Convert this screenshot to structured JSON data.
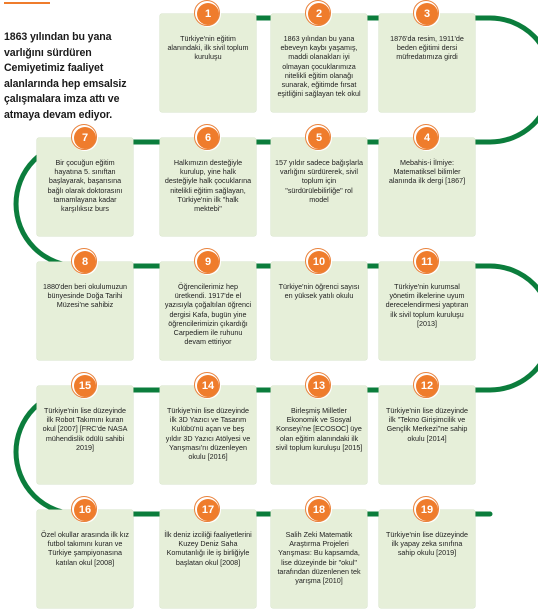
{
  "intro": "1863 yılından bu yana varlığını sürdüren Cemiyetimiz faaliyet alanlarında hep emsalsiz çalışmalara imza attı ve atmaya devam ediyor.",
  "colors": {
    "accent": "#ef7c2c",
    "path": "#0b7d3c",
    "card": "#e6efd9"
  },
  "milestones": [
    {
      "n": "1",
      "text": "Türkiye'nin eğitim alanındaki, ilk sivil toplum kuruluşu"
    },
    {
      "n": "2",
      "text": "1863 yılından bu yana ebeveyn kaybı yaşamış, maddi olanakları iyi olmayan çocuklarımıza nitelikli eğitim olanağı sunarak, eğitimde fırsat eşitliğini sağlayan tek okul"
    },
    {
      "n": "3",
      "text": "1876'da resim, 1911'de beden eğitimi dersi müfredatımıza girdi"
    },
    {
      "n": "4",
      "text": "Mebahis-i İlmiye: Matematiksel bilimler alanında ilk dergi [1867]"
    },
    {
      "n": "5",
      "text": "157 yıldır sadece bağışlarla varlığını sürdürerek, sivil toplum için \"sürdürülebilirliğe\" rol model"
    },
    {
      "n": "6",
      "text": "Halkımızın desteğiyle kurulup, yine halk desteğiyle halk çocuklarına nitelikli eğitim sağlayan, Türkiye'nin ilk \"halk mektebi\""
    },
    {
      "n": "7",
      "text": "Bir çocuğun eğitim hayatına 5. sınıftan başlayarak, başarısına bağlı olarak doktorasını tamamlayana kadar karşılıksız burs"
    },
    {
      "n": "8",
      "text": "1880'den beri okulumuzun bünyesinde Doğa Tarihi Müzesi'ne sahibiz"
    },
    {
      "n": "9",
      "text": "Öğrencilerimiz hep üretkendi. 1917'de el yazısıyla çoğaltılan öğrenci dergisi Kafa, bugün yine öğrencilerimizin çıkardığı Carpediem ile ruhunu devam ettiriyor"
    },
    {
      "n": "10",
      "text": "Türkiye'nin öğrenci sayısı en yüksek yatılı okulu"
    },
    {
      "n": "11",
      "text": "Türkiye'nin kurumsal yönetim ilkelerine uyum derecelendirmesi yaptıran ilk sivil toplum kuruluşu [2013]"
    },
    {
      "n": "12",
      "text": "Türkiye'nin lise düzeyinde ilk \"Tekno Girişimcilik ve Gençlik Merkezi\"ne sahip okulu [2014]"
    },
    {
      "n": "13",
      "text": "Birleşmiş Milletler Ekonomik ve Sosyal Konseyi'ne [ECOSOC] üye olan eğitim alanındaki ilk sivil toplum kuruluşu [2015]"
    },
    {
      "n": "14",
      "text": "Türkiye'nin lise düzeyinde ilk 3D Yazıcı ve Tasarım Kulübü'nü açan ve beş yıldır 3D Yazıcı Atölyesi ve Yarışması'nı düzenleyen okulu [2016]"
    },
    {
      "n": "15",
      "text": "Türkiye'nin lise düzeyinde ilk Robot Takımını kuran okul [2007] [FRC'de NASA mühendislik ödülü sahibi 2019]"
    },
    {
      "n": "16",
      "text": "Özel okullar arasında ilk kız futbol takımını kuran ve Türkiye şampiyonasına katılan okul [2008]"
    },
    {
      "n": "17",
      "text": "İlk deniz izciliği faaliyetlerini Kuzey Deniz Saha Komutanlığı ile iş birliğiyle başlatan okul [2008]"
    },
    {
      "n": "18",
      "text": "Salih Zeki Matematik Araştırma Projeleri Yarışması: Bu kapsamda, lise düzeyinde bir \"okul\" tarafından düzenlenen tek yarışma [2010]"
    },
    {
      "n": "19",
      "text": "Türkiye'nin lise düzeyinde ilk yapay zeka sınıfına sahip okulu [2019]"
    }
  ]
}
